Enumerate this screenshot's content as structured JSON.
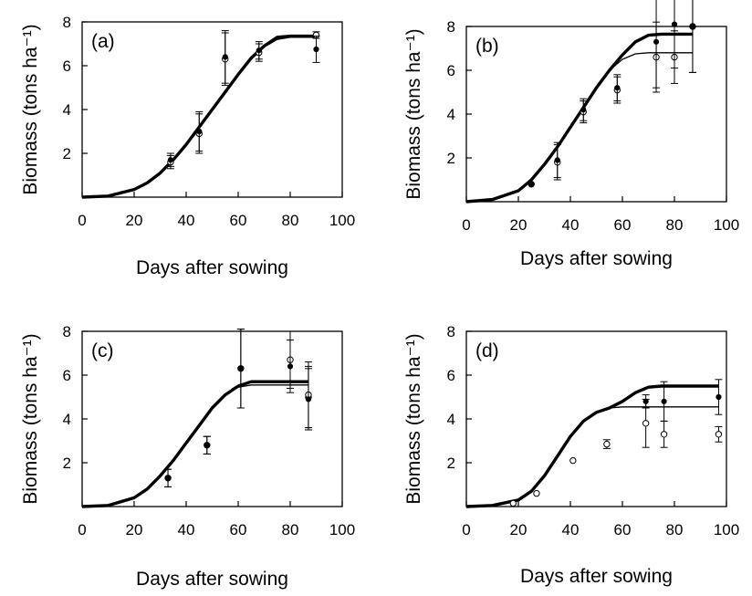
{
  "chart_data": [
    {
      "type": "line",
      "panel_label": "(a)",
      "xlabel": "Days after sowing",
      "ylabel": "Biomass (tons ha⁻¹)",
      "xlim": [
        0,
        100
      ],
      "ylim": [
        0,
        8
      ],
      "xticks": [
        "0",
        "20",
        "40",
        "60",
        "80",
        "100"
      ],
      "yticks": [
        "2",
        "4",
        "6",
        "8"
      ],
      "series": [
        {
          "style": "thick-line",
          "x": [
            0,
            10,
            20,
            25,
            30,
            35,
            40,
            45,
            50,
            55,
            60,
            65,
            70,
            75,
            80,
            85,
            90
          ],
          "y": [
            0,
            0.05,
            0.35,
            0.65,
            1.1,
            1.7,
            2.4,
            3.2,
            4.0,
            4.8,
            5.6,
            6.35,
            6.9,
            7.3,
            7.35,
            7.35,
            7.35
          ]
        },
        {
          "style": "thin-line",
          "x": [
            0,
            10,
            20,
            25,
            30,
            35,
            40,
            45,
            50,
            55,
            60,
            65,
            70,
            75,
            80,
            85,
            90
          ],
          "y": [
            0,
            0.05,
            0.35,
            0.65,
            1.1,
            1.7,
            2.4,
            3.2,
            4.0,
            4.8,
            5.6,
            6.3,
            6.85,
            7.2,
            7.3,
            7.3,
            7.3
          ]
        },
        {
          "style": "open-circles",
          "x": [
            34,
            45,
            55,
            68,
            90
          ],
          "y": [
            1.6,
            2.9,
            6.3,
            6.6,
            7.4
          ],
          "err": [
            0.3,
            0.9,
            1.2,
            0.4,
            0.15
          ]
        },
        {
          "style": "filled-circles",
          "x": [
            34,
            45,
            55,
            68,
            90
          ],
          "y": [
            1.7,
            3.0,
            6.4,
            6.7,
            6.75
          ],
          "err": [
            0.3,
            0.9,
            1.2,
            0.4,
            0.6
          ]
        }
      ]
    },
    {
      "type": "line",
      "panel_label": "(b)",
      "xlabel": "Days after sowing",
      "ylabel": "Biomass (tons ha⁻¹)",
      "xlim": [
        0,
        100
      ],
      "ylim": [
        0,
        8
      ],
      "xticks": [
        "0",
        "20",
        "40",
        "60",
        "80",
        "100"
      ],
      "yticks": [
        "2",
        "4",
        "6",
        "8"
      ],
      "series": [
        {
          "style": "thick-line",
          "x": [
            0,
            10,
            20,
            25,
            30,
            35,
            40,
            45,
            50,
            55,
            60,
            65,
            70,
            75,
            80,
            87
          ],
          "y": [
            0,
            0.1,
            0.5,
            1.0,
            1.7,
            2.5,
            3.4,
            4.3,
            5.2,
            6.0,
            6.7,
            7.3,
            7.6,
            7.65,
            7.65,
            7.65
          ]
        },
        {
          "style": "thin-line",
          "x": [
            0,
            10,
            20,
            25,
            30,
            35,
            40,
            45,
            50,
            55,
            60,
            65,
            70,
            75,
            80,
            87
          ],
          "y": [
            0,
            0.1,
            0.5,
            1.0,
            1.7,
            2.5,
            3.4,
            4.3,
            5.2,
            6.0,
            6.5,
            6.75,
            6.8,
            6.8,
            6.8,
            6.8
          ]
        },
        {
          "style": "open-circles",
          "x": [
            25,
            35,
            45,
            58,
            73,
            80,
            87
          ],
          "y": [
            0.8,
            1.8,
            4.1,
            5.1,
            6.6,
            6.6,
            8.0
          ],
          "err": [
            0.05,
            0.8,
            0.5,
            0.6,
            1.6,
            1.2,
            2.1
          ]
        },
        {
          "style": "filled-circles",
          "x": [
            25,
            35,
            45,
            58,
            73,
            80,
            87
          ],
          "y": [
            0.8,
            1.9,
            4.2,
            5.2,
            7.3,
            8.1,
            8.0
          ],
          "err": [
            0.05,
            0.8,
            0.5,
            0.6,
            2.1,
            2.0,
            2.1
          ]
        }
      ]
    },
    {
      "type": "line",
      "panel_label": "(c)",
      "xlabel": "Days after sowing",
      "ylabel": "Biomass (tons ha⁻¹)",
      "xlim": [
        0,
        100
      ],
      "ylim": [
        0,
        8
      ],
      "xticks": [
        "0",
        "20",
        "40",
        "60",
        "80",
        "100"
      ],
      "yticks": [
        "2",
        "4",
        "6",
        "8"
      ],
      "series": [
        {
          "style": "thick-line",
          "x": [
            0,
            10,
            20,
            25,
            30,
            35,
            40,
            45,
            50,
            55,
            60,
            65,
            70,
            75,
            80,
            87
          ],
          "y": [
            0,
            0.05,
            0.4,
            0.8,
            1.4,
            2.1,
            2.9,
            3.7,
            4.5,
            5.1,
            5.5,
            5.7,
            5.7,
            5.7,
            5.7,
            5.7
          ]
        },
        {
          "style": "thin-line",
          "x": [
            0,
            10,
            20,
            25,
            30,
            35,
            40,
            45,
            50,
            55,
            60,
            65,
            70,
            75,
            80,
            87
          ],
          "y": [
            0,
            0.05,
            0.4,
            0.8,
            1.4,
            2.1,
            2.9,
            3.7,
            4.5,
            5.1,
            5.45,
            5.55,
            5.55,
            5.55,
            5.55,
            5.55
          ]
        },
        {
          "style": "open-circles",
          "x": [
            33,
            48,
            61,
            80,
            87,
            87
          ],
          "y": [
            1.3,
            2.8,
            6.3,
            6.7,
            5.0,
            5.1
          ],
          "err": [
            0.4,
            0.4,
            1.8,
            1.3,
            1.4,
            1.5
          ]
        },
        {
          "style": "filled-circles",
          "x": [
            33,
            48,
            61,
            80,
            87
          ],
          "y": [
            1.3,
            2.8,
            6.3,
            6.4,
            4.9
          ],
          "err": [
            0.4,
            0.4,
            1.8,
            1.2,
            1.4
          ]
        }
      ]
    },
    {
      "type": "line",
      "panel_label": "(d)",
      "xlabel": "Days after sowing",
      "ylabel": "Biomass (tons ha⁻¹)",
      "xlim": [
        0,
        100
      ],
      "ylim": [
        0,
        8
      ],
      "xticks": [
        "0",
        "20",
        "40",
        "60",
        "80",
        "100"
      ],
      "yticks": [
        "2",
        "4",
        "6",
        "8"
      ],
      "series": [
        {
          "style": "thick-line",
          "x": [
            0,
            10,
            20,
            25,
            30,
            35,
            40,
            45,
            50,
            55,
            60,
            65,
            70,
            75,
            80,
            90,
            97
          ],
          "y": [
            0,
            0.05,
            0.3,
            0.7,
            1.4,
            2.3,
            3.2,
            3.9,
            4.3,
            4.5,
            4.8,
            5.2,
            5.45,
            5.5,
            5.5,
            5.5,
            5.5
          ]
        },
        {
          "style": "thin-line",
          "x": [
            0,
            10,
            20,
            25,
            30,
            35,
            40,
            45,
            50,
            55,
            60,
            65,
            70,
            75,
            80,
            90,
            97
          ],
          "y": [
            0,
            0.05,
            0.3,
            0.7,
            1.4,
            2.3,
            3.2,
            3.9,
            4.3,
            4.5,
            4.55,
            4.55,
            4.55,
            4.55,
            4.55,
            4.55,
            4.55
          ]
        },
        {
          "style": "open-circles",
          "x": [
            18,
            27,
            41,
            54,
            69,
            76,
            97
          ],
          "y": [
            0.15,
            0.6,
            2.1,
            2.85,
            3.8,
            3.3,
            3.3
          ],
          "err": [
            0.05,
            0.05,
            0.05,
            0.2,
            1.1,
            0.6,
            0.35
          ]
        },
        {
          "style": "filled-circles",
          "x": [
            69,
            76,
            97
          ],
          "y": [
            4.8,
            4.8,
            5.0
          ],
          "err": [
            0.3,
            0.9,
            0.8
          ]
        }
      ]
    }
  ]
}
